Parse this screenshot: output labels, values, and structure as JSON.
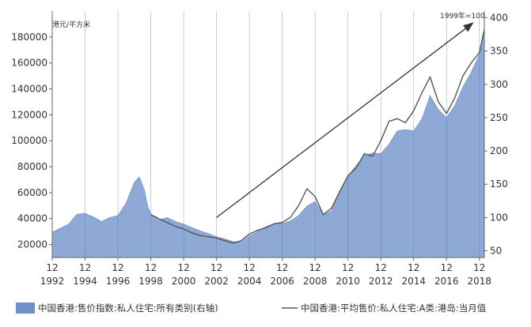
{
  "chart_data": {
    "type": "area",
    "left_unit": "港元/平方米",
    "right_unit": "1999年=100",
    "left_axis": {
      "min": 10000,
      "max": 200000,
      "ticks": [
        20000,
        40000,
        60000,
        80000,
        100000,
        120000,
        140000,
        160000,
        180000
      ]
    },
    "right_axis": {
      "min": 40,
      "max": 410,
      "ticks": [
        50,
        100,
        150,
        200,
        250,
        300,
        350,
        400
      ]
    },
    "x_axis": {
      "month_label": "12",
      "years": [
        "1992",
        "1994",
        "1996",
        "1998",
        "2000",
        "2002",
        "2004",
        "2006",
        "2008",
        "2010",
        "2012",
        "2014",
        "2016",
        "2018"
      ]
    },
    "grid": "vertical lines at each labeled year",
    "legend_position": "bottom",
    "series": [
      {
        "name": "中国香港:售价指数:私人住宅:所有类别(右轴)",
        "axis": "right",
        "type": "area",
        "color": "#8ea9d6",
        "x": [
          1992.0,
          1992.5,
          1993.0,
          1993.5,
          1994.0,
          1994.5,
          1995.0,
          1995.5,
          1996.0,
          1996.5,
          1997.0,
          1997.3,
          1997.6,
          1997.8,
          1998.0,
          1998.5,
          1999.0,
          1999.5,
          2000.0,
          2000.5,
          2001.0,
          2001.5,
          2002.0,
          2002.5,
          2003.0,
          2003.5,
          2004.0,
          2004.5,
          2005.0,
          2005.5,
          2006.0,
          2006.5,
          2007.0,
          2007.5,
          2008.0,
          2008.5,
          2009.0,
          2009.5,
          2010.0,
          2010.5,
          2011.0,
          2011.5,
          2012.0,
          2012.5,
          2013.0,
          2013.5,
          2014.0,
          2014.5,
          2015.0,
          2015.5,
          2016.0,
          2016.5,
          2017.0,
          2017.5,
          2018.0,
          2018.3
        ],
        "values": [
          78,
          84,
          90,
          105,
          106,
          101,
          94,
          100,
          103,
          122,
          153,
          161,
          142,
          118,
          105,
          96,
          100,
          94,
          90,
          85,
          80,
          76,
          71,
          68,
          64,
          63,
          72,
          79,
          86,
          91,
          91,
          95,
          103,
          117,
          124,
          104,
          110,
          140,
          162,
          178,
          193,
          197,
          196,
          210,
          230,
          232,
          230,
          248,
          283,
          262,
          250,
          268,
          296,
          318,
          345,
          380
        ]
      },
      {
        "name": "中国香港:平均售价:私人住宅:A类:港岛:当月值",
        "axis": "left",
        "type": "line",
        "color": "#555555",
        "x": [
          1998.0,
          1998.5,
          1999.0,
          1999.5,
          2000.0,
          2000.5,
          2001.0,
          2001.5,
          2002.0,
          2002.5,
          2003.0,
          2003.5,
          2004.0,
          2004.5,
          2005.0,
          2005.5,
          2006.0,
          2006.5,
          2007.0,
          2007.5,
          2008.0,
          2008.5,
          2009.0,
          2009.5,
          2010.0,
          2010.5,
          2011.0,
          2011.5,
          2012.0,
          2012.5,
          2013.0,
          2013.5,
          2014.0,
          2014.5,
          2015.0,
          2015.5,
          2016.0,
          2016.5,
          2017.0,
          2017.5,
          2018.0,
          2018.3
        ],
        "values": [
          43000,
          40000,
          37000,
          34000,
          32000,
          29000,
          27000,
          26000,
          25000,
          23000,
          21000,
          23000,
          28000,
          31000,
          33000,
          36000,
          37000,
          41000,
          50000,
          63000,
          57000,
          43000,
          48000,
          61000,
          73000,
          79000,
          90000,
          88000,
          100000,
          115000,
          117000,
          114000,
          123000,
          137000,
          149000,
          130000,
          121000,
          133000,
          150000,
          160000,
          168000,
          186000
        ]
      }
    ],
    "trend_arrow": {
      "from": [
        2002.0,
        100
      ],
      "to": [
        2017.6,
        392
      ]
    }
  }
}
